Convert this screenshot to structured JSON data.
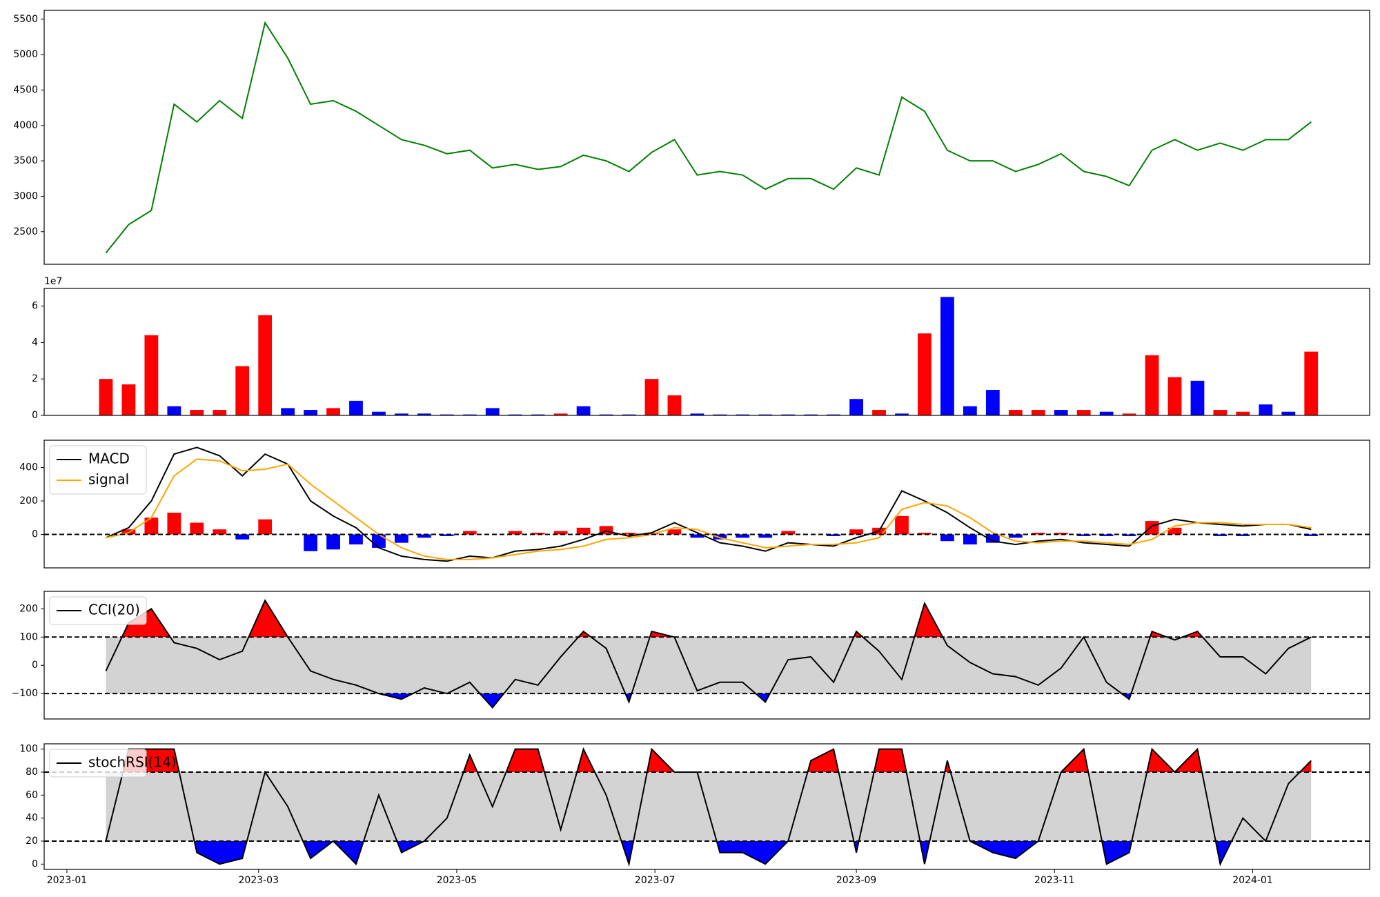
{
  "chart_data": [
    {
      "type": "line",
      "x": [
        "2023-01-13",
        "2023-01-20",
        "2023-01-27",
        "2023-02-03",
        "2023-02-10",
        "2023-02-17",
        "2023-02-24",
        "2023-03-03",
        "2023-03-10",
        "2023-03-17",
        "2023-03-24",
        "2023-03-31",
        "2023-04-07",
        "2023-04-14",
        "2023-04-21",
        "2023-04-28",
        "2023-05-05",
        "2023-05-12",
        "2023-05-19",
        "2023-05-26",
        "2023-06-02",
        "2023-06-09",
        "2023-06-16",
        "2023-06-23",
        "2023-06-30",
        "2023-07-07",
        "2023-07-14",
        "2023-07-21",
        "2023-07-28",
        "2023-08-04",
        "2023-08-11",
        "2023-08-18",
        "2023-08-25",
        "2023-09-01",
        "2023-09-08",
        "2023-09-15",
        "2023-09-22",
        "2023-09-29",
        "2023-10-06",
        "2023-10-13",
        "2023-10-20",
        "2023-10-27",
        "2023-11-03",
        "2023-11-10",
        "2023-11-17",
        "2023-11-24",
        "2023-12-01",
        "2023-12-08",
        "2023-12-15",
        "2023-12-22",
        "2023-12-29",
        "2024-01-05",
        "2024-01-12",
        "2024-01-19"
      ],
      "xlim": [
        "2022-12-25",
        "2024-02-06"
      ],
      "series": [
        {
          "color": "#008000",
          "values": [
            2200,
            2600,
            2800,
            4300,
            4050,
            4350,
            4100,
            5450,
            4950,
            4300,
            4350,
            4200,
            4000,
            3800,
            3720,
            3600,
            3650,
            3400,
            3450,
            3380,
            3420,
            3580,
            3500,
            3350,
            3620,
            3800,
            3300,
            3350,
            3300,
            3100,
            3250,
            3250,
            3100,
            3400,
            3300,
            4400,
            4200,
            3650,
            3500,
            3500,
            3350,
            3450,
            3600,
            3350,
            3280,
            3150,
            3650,
            3800,
            3650,
            3750,
            3650,
            3800,
            3800,
            4050
          ]
        }
      ],
      "ylim": [
        2040,
        5625
      ],
      "yticks": [
        2500,
        3000,
        3500,
        4000,
        4500,
        5000,
        5500
      ]
    },
    {
      "type": "bar",
      "offset_label": "1e7",
      "values": [
        2.0,
        1.7,
        4.4,
        0.5,
        0.3,
        0.3,
        2.7,
        5.5,
        0.4,
        0.3,
        0.4,
        0.8,
        0.2,
        0.1,
        0.1,
        0.05,
        0.05,
        0.4,
        0.05,
        0.05,
        0.1,
        0.5,
        0.05,
        0.05,
        2.0,
        1.1,
        0.1,
        0.05,
        0.05,
        0.05,
        0.05,
        0.05,
        0.05,
        0.9,
        0.3,
        0.1,
        4.5,
        6.5,
        0.5,
        1.4,
        0.3,
        0.3,
        0.3,
        0.3,
        0.2,
        0.1,
        3.3,
        2.1,
        1.9,
        0.3,
        0.2,
        0.6,
        0.2,
        3.5
      ],
      "colors": [
        "#ff0000",
        "#ff0000",
        "#ff0000",
        "#0000ff",
        "#ff0000",
        "#ff0000",
        "#ff0000",
        "#ff0000",
        "#0000ff",
        "#0000ff",
        "#ff0000",
        "#0000ff",
        "#0000ff",
        "#0000ff",
        "#0000ff",
        "#0000ff",
        "#0000ff",
        "#0000ff",
        "#0000ff",
        "#0000ff",
        "#ff0000",
        "#0000ff",
        "#0000ff",
        "#0000ff",
        "#ff0000",
        "#ff0000",
        "#0000ff",
        "#0000ff",
        "#0000ff",
        "#0000ff",
        "#0000ff",
        "#0000ff",
        "#0000ff",
        "#0000ff",
        "#ff0000",
        "#0000ff",
        "#ff0000",
        "#0000ff",
        "#0000ff",
        "#0000ff",
        "#ff0000",
        "#ff0000",
        "#0000ff",
        "#ff0000",
        "#0000ff",
        "#ff0000",
        "#ff0000",
        "#ff0000",
        "#0000ff",
        "#ff0000",
        "#ff0000",
        "#0000ff",
        "#0000ff",
        "#ff0000"
      ],
      "ylim": [
        0,
        6.97
      ],
      "yticks": [
        0,
        2,
        4,
        6
      ]
    },
    {
      "type": "line",
      "legend": "upper left",
      "hlines": [
        0
      ],
      "series": [
        {
          "name": "MACD",
          "color": "#000000",
          "values": [
            -20,
            40,
            200,
            480,
            520,
            470,
            350,
            480,
            420,
            200,
            110,
            40,
            -80,
            -130,
            -150,
            -160,
            -130,
            -140,
            -100,
            -90,
            -70,
            -30,
            20,
            -10,
            10,
            70,
            10,
            -50,
            -70,
            -100,
            -50,
            -60,
            -70,
            -20,
            20,
            260,
            200,
            130,
            40,
            -40,
            -60,
            -40,
            -30,
            -50,
            -60,
            -70,
            50,
            90,
            70,
            60,
            50,
            60,
            60,
            30
          ]
        },
        {
          "name": "signal",
          "color": "#ffa500",
          "values": [
            -20,
            10,
            100,
            350,
            450,
            440,
            380,
            390,
            420,
            300,
            200,
            100,
            0,
            -80,
            -130,
            -150,
            -150,
            -140,
            -120,
            -100,
            -90,
            -70,
            -30,
            -20,
            0,
            40,
            30,
            -20,
            -50,
            -80,
            -70,
            -60,
            -60,
            -50,
            -20,
            150,
            190,
            170,
            100,
            10,
            -40,
            -50,
            -40,
            -40,
            -50,
            -60,
            -30,
            50,
            70,
            70,
            60,
            60,
            60,
            40
          ]
        }
      ],
      "histogram": {
        "colors": [
          "#ff0000",
          "#0000ff"
        ],
        "values": [
          0,
          30,
          100,
          130,
          70,
          30,
          -30,
          90,
          0,
          -100,
          -90,
          -60,
          -80,
          -50,
          -20,
          -10,
          20,
          0,
          20,
          10,
          20,
          40,
          50,
          10,
          10,
          30,
          -20,
          -30,
          -20,
          -20,
          20,
          0,
          -10,
          30,
          40,
          110,
          10,
          -40,
          -60,
          -50,
          -20,
          10,
          10,
          -10,
          -10,
          -10,
          80,
          40,
          0,
          -10,
          -10,
          0,
          0,
          -10
        ]
      },
      "ylim": [
        -200,
        563
      ],
      "yticks": [
        0,
        200,
        400
      ]
    },
    {
      "type": "line",
      "legend": "upper left",
      "hlines": [
        -100,
        100
      ],
      "band": [
        -100,
        100
      ],
      "band_color": "#d3d3d3",
      "fill_colors": [
        "#ff0000",
        "#0000ff"
      ],
      "series": [
        {
          "name": "CCI(20)",
          "color": "#000000",
          "values": [
            -20,
            150,
            200,
            80,
            60,
            20,
            50,
            230,
            100,
            -20,
            -50,
            -70,
            -100,
            -120,
            -80,
            -100,
            -60,
            -150,
            -50,
            -70,
            30,
            120,
            60,
            -130,
            120,
            100,
            -90,
            -60,
            -60,
            -130,
            20,
            30,
            -60,
            120,
            50,
            -50,
            220,
            70,
            10,
            -30,
            -40,
            -70,
            -10,
            100,
            -60,
            -120,
            120,
            90,
            120,
            30,
            30,
            -30,
            60,
            100
          ]
        }
      ],
      "ylim": [
        -190,
        262
      ],
      "yticks": [
        {
          "value": -100,
          "label": "−100"
        },
        0,
        100,
        200
      ]
    },
    {
      "type": "line",
      "legend": "upper left",
      "hlines": [
        20,
        80
      ],
      "band": [
        20,
        80
      ],
      "band_color": "#d3d3d3",
      "fill_colors": [
        "#ff0000",
        "#0000ff"
      ],
      "series": [
        {
          "name": "stochRSI(14)",
          "color": "#000000",
          "values": [
            20,
            100,
            100,
            100,
            10,
            0,
            5,
            80,
            50,
            5,
            20,
            0,
            60,
            10,
            20,
            40,
            95,
            50,
            100,
            100,
            30,
            100,
            60,
            0,
            100,
            80,
            80,
            10,
            10,
            0,
            20,
            90,
            100,
            10,
            100,
            100,
            0,
            90,
            20,
            10,
            5,
            20,
            80,
            100,
            0,
            10,
            100,
            80,
            100,
            0,
            40,
            20,
            70,
            90
          ]
        }
      ],
      "ylim": [
        -4.6,
        104.6
      ],
      "yticks": [
        0,
        20,
        40,
        60,
        80,
        100
      ],
      "xticks": [
        {
          "value": "2023-01-01",
          "label": "2023-01"
        },
        {
          "value": "2023-03-01",
          "label": "2023-03"
        },
        {
          "value": "2023-05-01",
          "label": "2023-05"
        },
        {
          "value": "2023-07-01",
          "label": "2023-07"
        },
        {
          "value": "2023-09-01",
          "label": "2023-09"
        },
        {
          "value": "2023-11-01",
          "label": "2023-11"
        },
        {
          "value": "2024-01-01",
          "label": "2024-01"
        }
      ]
    }
  ]
}
